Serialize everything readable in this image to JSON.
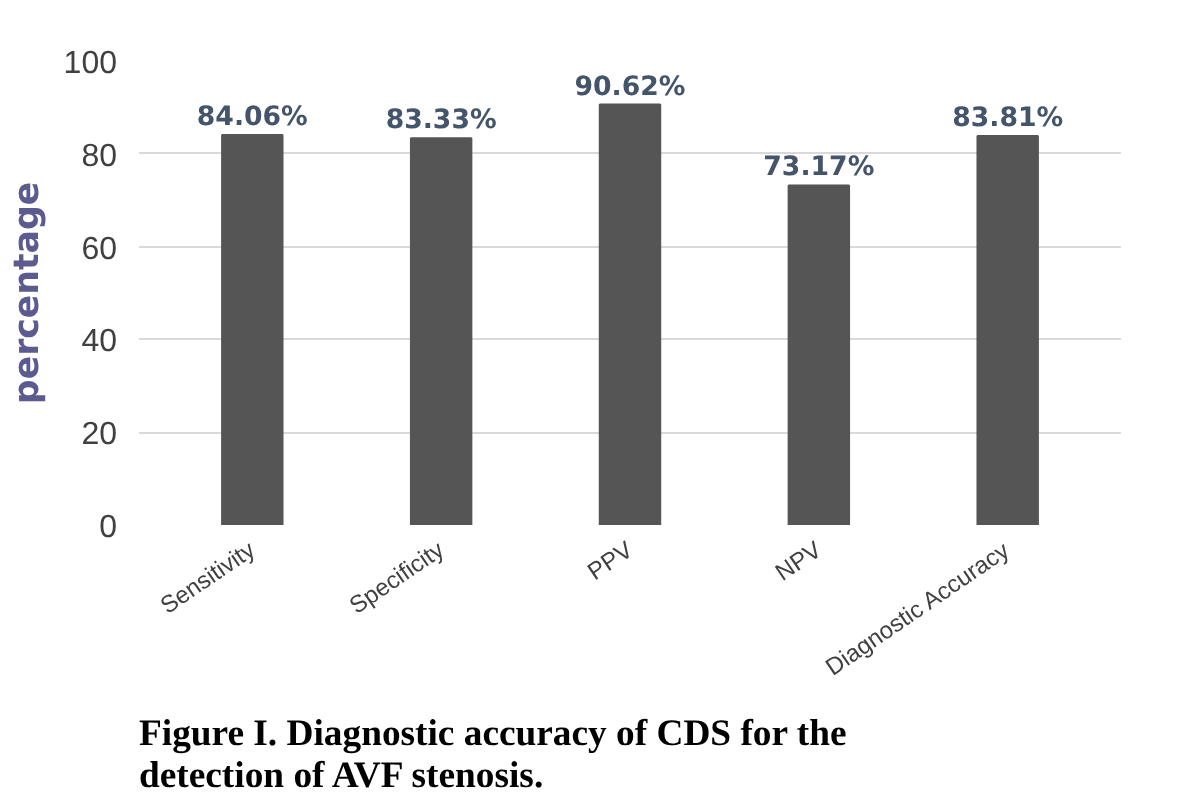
{
  "chart_data": {
    "type": "bar",
    "title": "Figure I. Diagnostic accuracy of CDS for the detection of AVF stenosis.",
    "ylabel": "percentage",
    "categories": [
      "Sensitivity",
      "Specificity",
      "PPV",
      "NPV",
      "Diagnostic Accuracy"
    ],
    "values": [
      84.06,
      83.33,
      90.62,
      73.17,
      83.81
    ],
    "value_labels": [
      "84.06%",
      "83.33%",
      "90.62%",
      "73.17%",
      "83.81%"
    ],
    "color": "#555555",
    "ylim": [
      0,
      100
    ],
    "yticks": [
      0,
      20,
      40,
      60,
      80,
      100
    ],
    "grid": "y"
  }
}
